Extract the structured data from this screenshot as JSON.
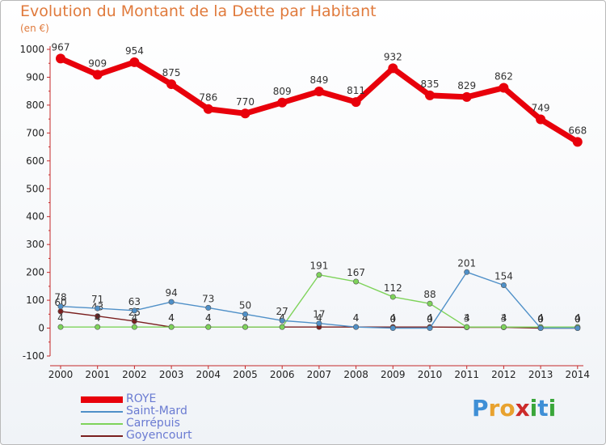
{
  "chart_data": {
    "type": "line",
    "title": "Evolution du Montant de la Dette par Habitant",
    "subtitle": "(en €)",
    "categories": [
      "2000",
      "2001",
      "2002",
      "2003",
      "2004",
      "2005",
      "2006",
      "2007",
      "2008",
      "2009",
      "2010",
      "2011",
      "2012",
      "2013",
      "2014"
    ],
    "ylim": [
      -100,
      1000
    ],
    "yticks": [
      -100,
      0,
      100,
      200,
      300,
      400,
      500,
      600,
      700,
      800,
      900,
      1000
    ],
    "grid": false,
    "legend_position": "bottom-left",
    "series": [
      {
        "name": "ROYE",
        "color": "#e8000b",
        "values": [
          967,
          909,
          954,
          875,
          786,
          770,
          809,
          849,
          811,
          932,
          835,
          829,
          862,
          749,
          668
        ],
        "labels": [
          "967",
          "909",
          "954",
          "875",
          "786",
          "770",
          "809",
          "849",
          "811",
          "932",
          "835",
          "829",
          "862",
          "749",
          "668"
        ]
      },
      {
        "name": "Saint-Mard",
        "color": "#4f90c8",
        "values": [
          78,
          71,
          63,
          94,
          73,
          50,
          27,
          17,
          4,
          0,
          0,
          201,
          154,
          0,
          0
        ],
        "labels": [
          "78",
          "71",
          "63",
          "94",
          "73",
          "50",
          "27",
          "17",
          "4",
          "0",
          "0",
          "201",
          "154",
          "0",
          "0"
        ]
      },
      {
        "name": "Carrépuis",
        "color": "#7ed35a",
        "values": [
          4,
          4,
          4,
          4,
          4,
          4,
          4,
          191,
          167,
          112,
          88,
          4,
          4,
          4,
          4
        ],
        "labels": [
          "4",
          "4",
          "4",
          "4",
          "4",
          "4",
          "4",
          "191",
          "167",
          "112",
          "88",
          "4",
          "4",
          "4",
          "4"
        ]
      },
      {
        "name": "Goyencourt",
        "color": "#7a1f1f",
        "values": [
          60,
          43,
          25,
          4,
          4,
          4,
          4,
          4,
          4,
          4,
          4,
          3,
          3,
          0,
          0
        ],
        "labels": [
          "60",
          "43",
          "25",
          "4",
          "4",
          "4",
          "4",
          "4",
          "4",
          "4",
          "4",
          "3",
          "3",
          "0",
          "0"
        ]
      }
    ]
  },
  "branding": {
    "logo_letters": [
      "P",
      "r",
      "o",
      "x",
      "i",
      "t",
      "i"
    ],
    "logo_colors": [
      "#3f8fd6",
      "#e8a22f",
      "#e8a22f",
      "#cc2b2b",
      "#3aa63a",
      "#3f8fd6",
      "#3aa63a"
    ]
  }
}
